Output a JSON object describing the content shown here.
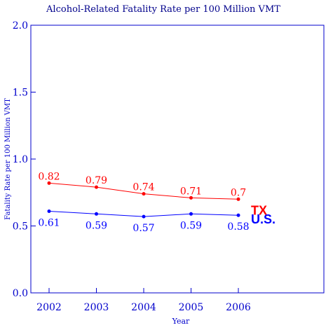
{
  "chart_data": {
    "type": "line",
    "title": "Alcohol-Related Fatality Rate per 100 Million VMT",
    "xlabel": "Year",
    "ylabel": "Fatality Rate per 100 Million VMT",
    "x": [
      "2002",
      "2003",
      "2004",
      "2005",
      "2006"
    ],
    "ylim": [
      0.0,
      2.0
    ],
    "yticks": [
      "0.0",
      "0.5",
      "1.0",
      "1.5",
      "2.0"
    ],
    "grid": false,
    "series": [
      {
        "name": "TX",
        "color": "#ff0000",
        "values": [
          0.82,
          0.79,
          0.74,
          0.71,
          0.7
        ],
        "labels": [
          "0.82",
          "0.79",
          "0.74",
          "0.71",
          "0.7"
        ]
      },
      {
        "name": "U.S.",
        "color": "#0000ff",
        "values": [
          0.61,
          0.59,
          0.57,
          0.59,
          0.58
        ],
        "labels": [
          "0.61",
          "0.59",
          "0.57",
          "0.59",
          "0.58"
        ]
      }
    ],
    "axis_color": "#0000cc"
  }
}
